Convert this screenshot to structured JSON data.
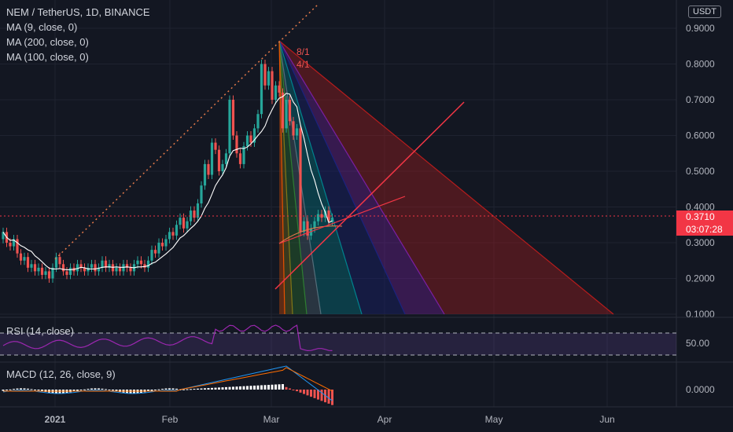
{
  "header": {
    "symbol_line": "NEM / TetherUS, 1D, BINANCE",
    "ma9": "MA (9, close, 0)",
    "ma200": "MA (200, close, 0)",
    "ma100": "MA (100, close, 0)",
    "currency": "USDT"
  },
  "price_tag": {
    "price": "0.3710",
    "countdown": "03:07:28"
  },
  "chart_data": [
    {
      "type": "candlestick",
      "title": "NEM / TetherUS, 1D, BINANCE",
      "x_ticks": [
        "2021",
        "Feb",
        "Mar",
        "Apr",
        "May",
        "Jun"
      ],
      "y_ticks": [
        "0.9000",
        "0.8000",
        "0.7000",
        "0.6000",
        "0.5000",
        "0.4000",
        "0.3000",
        "0.2000",
        "0.1000"
      ],
      "ylim": [
        0.1,
        0.9
      ],
      "last_price": 0.371,
      "series": [
        {
          "name": "MA (9, close, 0)"
        },
        {
          "name": "MA (200, close, 0)"
        },
        {
          "name": "MA (100, close, 0)"
        }
      ],
      "annotations": [
        "8/1",
        "4/1"
      ],
      "grid": true
    },
    {
      "type": "line",
      "title": "RSI (14, close)",
      "y_ticks": [
        "50.00"
      ],
      "levels": [
        70,
        30
      ]
    },
    {
      "type": "bar",
      "title": "MACD (12, 26, close, 9)",
      "y_ticks": [
        "0.0000"
      ]
    }
  ],
  "colors": {
    "up": "#26a69a",
    "down": "#ef5350",
    "bg": "#131722",
    "accent": "#f23645",
    "rsi": "#9c27b0"
  }
}
